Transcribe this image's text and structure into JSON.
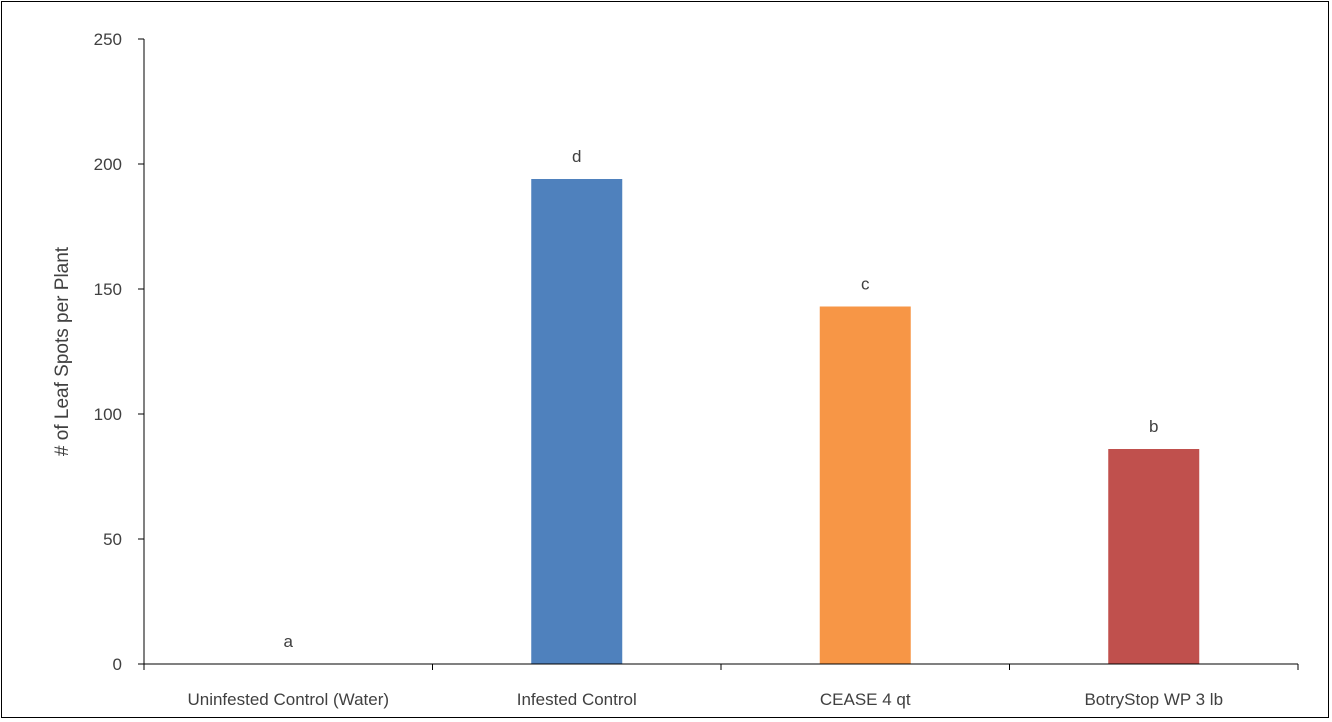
{
  "chart_data": {
    "type": "bar",
    "title": "",
    "xlabel": "",
    "ylabel": "# of Leaf Spots per Plant",
    "ylim": [
      0,
      250
    ],
    "yticks": [
      "0",
      "50",
      "100",
      "150",
      "200",
      "250"
    ],
    "grid": false,
    "legend": "none",
    "categories": [
      "Uninfested Control (Water)",
      "Infested Control",
      "CEASE 4 qt",
      "BotryStop WP 3 lb"
    ],
    "values": [
      0,
      194,
      143,
      86
    ],
    "significance_labels": [
      "a",
      "d",
      "c",
      "b"
    ],
    "bar_colors": [
      "#4F81BD",
      "#4F81BD",
      "#F79646",
      "#C0504D"
    ]
  }
}
